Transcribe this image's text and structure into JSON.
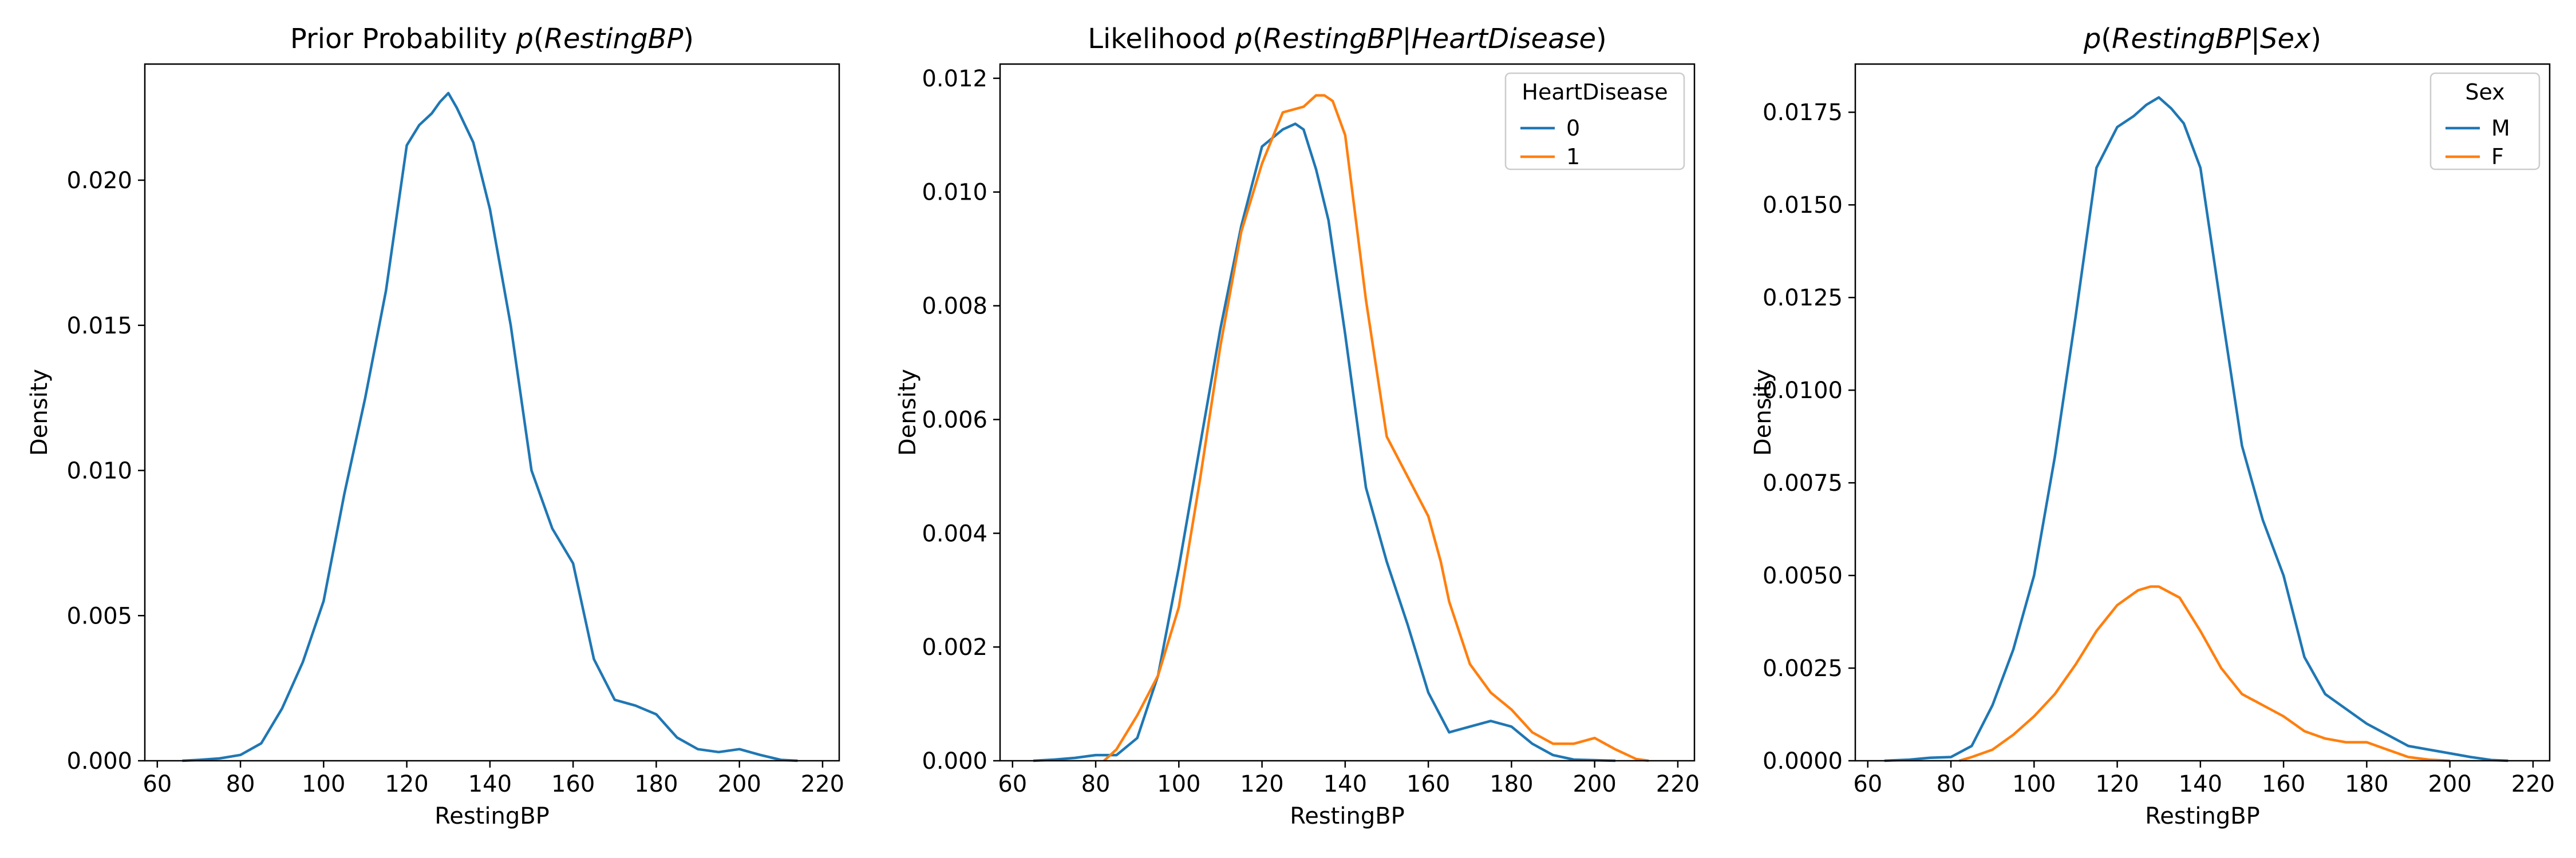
{
  "chart_data": [
    {
      "type": "line",
      "title_parts": [
        {
          "text": "Prior Probability ",
          "italic": false
        },
        {
          "text": "p",
          "italic": true
        },
        {
          "text": "(",
          "italic": false
        },
        {
          "text": "RestingBP",
          "italic": true
        },
        {
          "text": ")",
          "italic": false
        }
      ],
      "xlabel": "RestingBP",
      "ylabel": "Density",
      "xlim": [
        57,
        224
      ],
      "ylim": [
        0,
        0.024
      ],
      "xticks": [
        60,
        80,
        100,
        120,
        140,
        160,
        180,
        200,
        220
      ],
      "yticks": [
        0.0,
        0.005,
        0.01,
        0.015,
        0.02
      ],
      "ytick_labels": [
        "0.000",
        "0.005",
        "0.010",
        "0.015",
        "0.020"
      ],
      "legend": null,
      "series": [
        {
          "name": "",
          "color": "#1f77b4",
          "x": [
            66,
            70,
            75,
            80,
            85,
            90,
            95,
            100,
            105,
            110,
            115,
            120,
            123,
            126,
            128,
            130,
            132,
            134,
            136,
            140,
            145,
            150,
            155,
            160,
            165,
            170,
            175,
            180,
            185,
            190,
            195,
            200,
            205,
            210,
            214
          ],
          "y": [
            0.0,
            3e-05,
            8e-05,
            0.0002,
            0.0006,
            0.0018,
            0.0034,
            0.0055,
            0.0092,
            0.0125,
            0.0162,
            0.0212,
            0.0219,
            0.0223,
            0.0227,
            0.023,
            0.0225,
            0.0219,
            0.0213,
            0.019,
            0.015,
            0.01,
            0.008,
            0.0068,
            0.0035,
            0.0021,
            0.0019,
            0.0016,
            0.0008,
            0.0004,
            0.0003,
            0.0004,
            0.0002,
            3e-05,
            0.0
          ]
        }
      ]
    },
    {
      "type": "line",
      "title_parts": [
        {
          "text": "Likelihood ",
          "italic": false
        },
        {
          "text": "p",
          "italic": true
        },
        {
          "text": "(",
          "italic": false
        },
        {
          "text": "RestingBP",
          "italic": true
        },
        {
          "text": "|",
          "italic": false
        },
        {
          "text": "HeartDisease",
          "italic": true
        },
        {
          "text": ")",
          "italic": false
        }
      ],
      "xlabel": "RestingBP",
      "ylabel": "Density",
      "xlim": [
        57,
        224
      ],
      "ylim": [
        0,
        0.01225
      ],
      "xticks": [
        60,
        80,
        100,
        120,
        140,
        160,
        180,
        200,
        220
      ],
      "yticks": [
        0.0,
        0.002,
        0.004,
        0.006,
        0.008,
        0.01,
        0.012
      ],
      "ytick_labels": [
        "0.000",
        "0.002",
        "0.004",
        "0.006",
        "0.008",
        "0.010",
        "0.012"
      ],
      "legend": {
        "title": "HeartDisease",
        "placement": "top-right",
        "entries": [
          "0",
          "1"
        ]
      },
      "series": [
        {
          "name": "0",
          "color": "#1f77b4",
          "x": [
            65,
            70,
            75,
            80,
            85,
            90,
            95,
            100,
            105,
            110,
            115,
            120,
            125,
            128,
            130,
            133,
            136,
            140,
            145,
            150,
            155,
            160,
            165,
            170,
            175,
            180,
            185,
            190,
            195,
            200,
            205
          ],
          "y": [
            0.0,
            2e-05,
            5e-05,
            0.0001,
            0.0001,
            0.0004,
            0.0015,
            0.0034,
            0.0055,
            0.0076,
            0.0094,
            0.0108,
            0.0111,
            0.0112,
            0.0111,
            0.0104,
            0.0095,
            0.0075,
            0.0048,
            0.0035,
            0.0024,
            0.0012,
            0.0005,
            0.0006,
            0.0007,
            0.0006,
            0.0003,
            0.0001,
            2e-05,
            1e-05,
            0.0
          ]
        },
        {
          "name": "1",
          "color": "#ff7f0e",
          "x": [
            82,
            85,
            90,
            95,
            100,
            105,
            110,
            115,
            120,
            125,
            130,
            133,
            135,
            137,
            140,
            145,
            150,
            155,
            160,
            163,
            165,
            170,
            175,
            180,
            185,
            190,
            195,
            200,
            205,
            210,
            213
          ],
          "y": [
            0.0,
            0.0002,
            0.0008,
            0.0015,
            0.0027,
            0.0049,
            0.0073,
            0.0093,
            0.0105,
            0.0114,
            0.0115,
            0.0117,
            0.0117,
            0.0116,
            0.011,
            0.0081,
            0.0057,
            0.005,
            0.0043,
            0.0035,
            0.0028,
            0.0017,
            0.0012,
            0.0009,
            0.0005,
            0.0003,
            0.0003,
            0.0004,
            0.0002,
            3e-05,
            0.0
          ]
        }
      ]
    },
    {
      "type": "line",
      "title_parts": [
        {
          "text": "p",
          "italic": true
        },
        {
          "text": "(",
          "italic": false
        },
        {
          "text": "RestingBP",
          "italic": true
        },
        {
          "text": "|",
          "italic": false
        },
        {
          "text": "Sex",
          "italic": true
        },
        {
          "text": ")",
          "italic": false
        }
      ],
      "xlabel": "RestingBP",
      "ylabel": "Density",
      "xlim": [
        57,
        224
      ],
      "ylim": [
        0,
        0.0188
      ],
      "xticks": [
        60,
        80,
        100,
        120,
        140,
        160,
        180,
        200,
        220
      ],
      "yticks": [
        0.0,
        0.0025,
        0.005,
        0.0075,
        0.01,
        0.0125,
        0.015,
        0.0175
      ],
      "ytick_labels": [
        "0.0000",
        "0.0025",
        "0.0050",
        "0.0075",
        "0.0100",
        "0.0125",
        "0.0150",
        "0.0175"
      ],
      "legend": {
        "title": "Sex",
        "placement": "top-right",
        "entries": [
          "M",
          "F"
        ]
      },
      "series": [
        {
          "name": "M",
          "color": "#1f77b4",
          "x": [
            64,
            70,
            75,
            80,
            85,
            90,
            95,
            100,
            105,
            110,
            115,
            120,
            124,
            127,
            130,
            133,
            136,
            140,
            145,
            150,
            155,
            160,
            165,
            170,
            175,
            180,
            185,
            190,
            195,
            200,
            205,
            210,
            214
          ],
          "y": [
            0.0,
            3e-05,
            8e-05,
            0.0001,
            0.0004,
            0.0015,
            0.003,
            0.005,
            0.0082,
            0.012,
            0.016,
            0.0171,
            0.0174,
            0.0177,
            0.0179,
            0.0176,
            0.0172,
            0.016,
            0.0122,
            0.0085,
            0.0065,
            0.005,
            0.0028,
            0.0018,
            0.0014,
            0.001,
            0.0007,
            0.0004,
            0.0003,
            0.0002,
            0.0001,
            2e-05,
            0.0
          ]
        },
        {
          "name": "F",
          "color": "#ff7f0e",
          "x": [
            82,
            85,
            90,
            95,
            100,
            105,
            110,
            115,
            120,
            125,
            128,
            130,
            135,
            140,
            145,
            150,
            155,
            160,
            165,
            170,
            175,
            180,
            185,
            190,
            195,
            200
          ],
          "y": [
            0.0,
            0.0001,
            0.0003,
            0.0007,
            0.0012,
            0.0018,
            0.0026,
            0.0035,
            0.0042,
            0.0046,
            0.0047,
            0.0047,
            0.0044,
            0.0035,
            0.0025,
            0.0018,
            0.0015,
            0.0012,
            0.0008,
            0.0006,
            0.0005,
            0.0005,
            0.0003,
            0.0001,
            3e-05,
            0.0
          ]
        }
      ]
    }
  ]
}
